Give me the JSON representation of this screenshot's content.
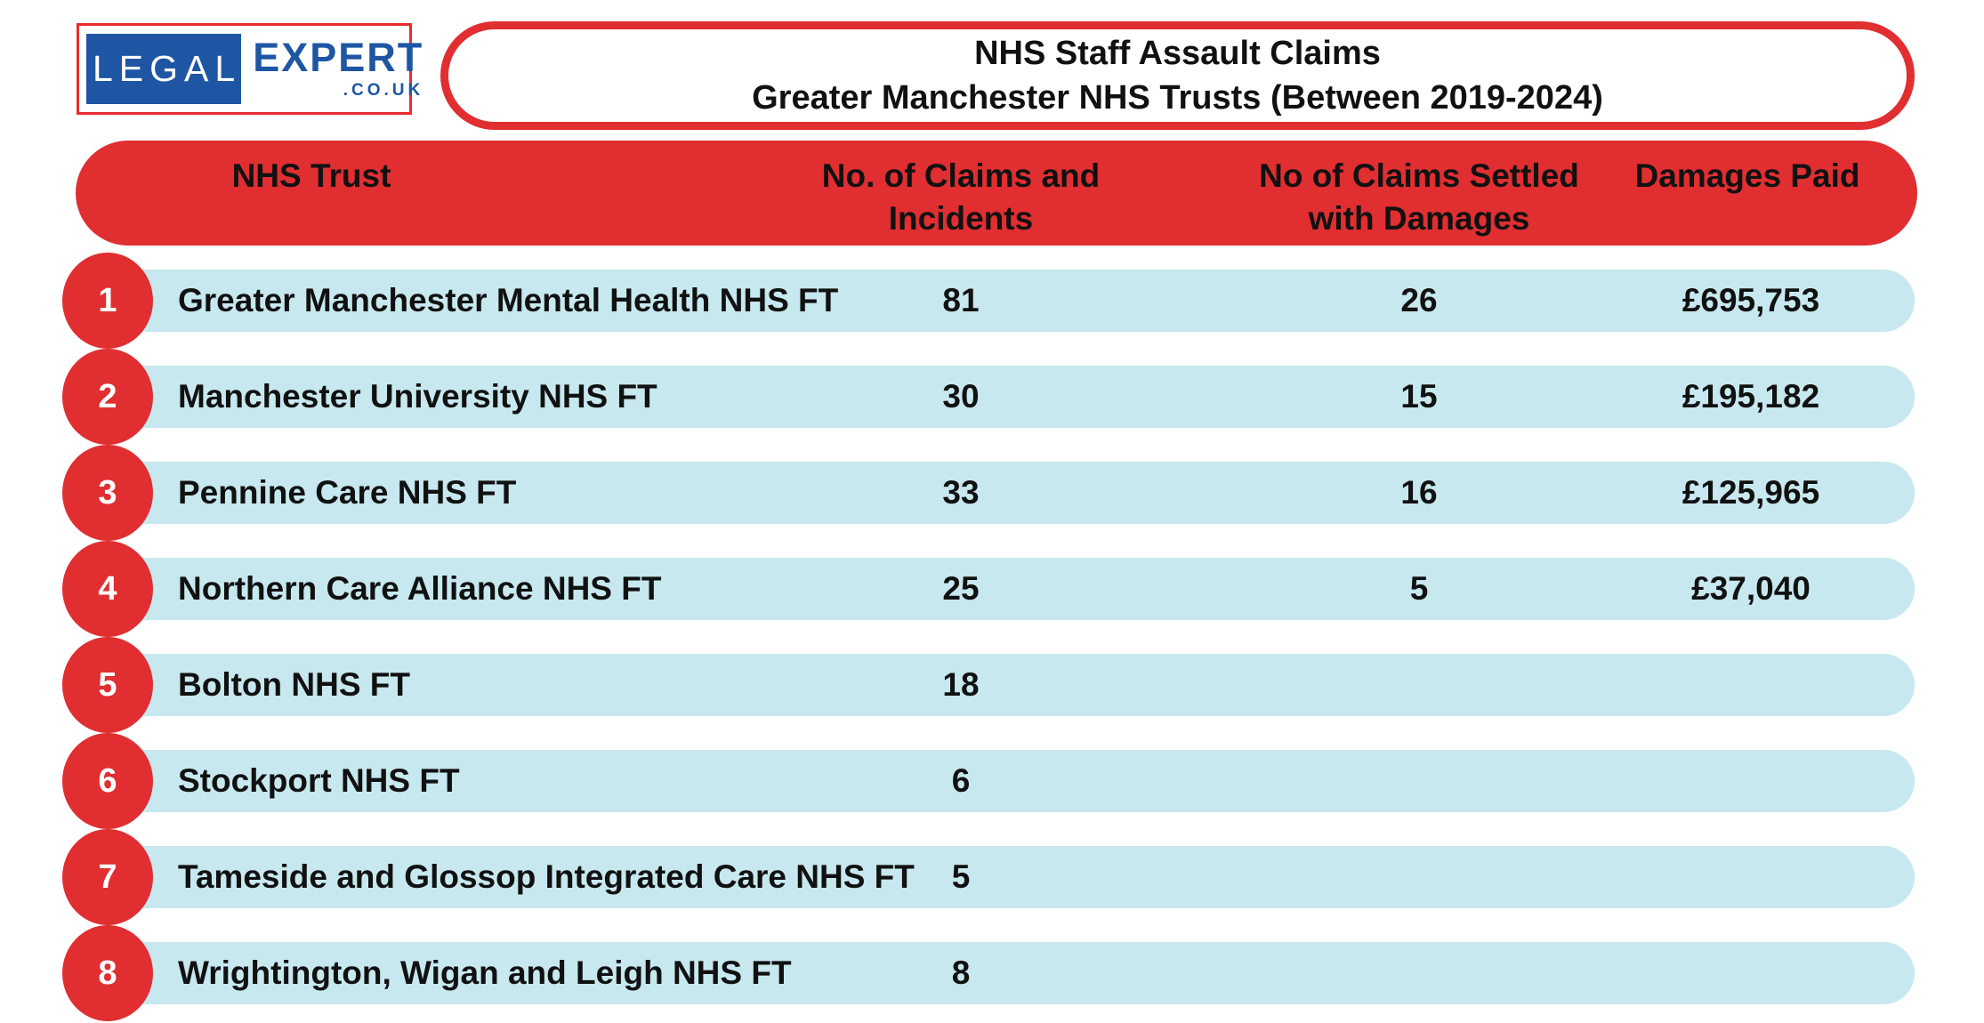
{
  "logo": {
    "brand_primary": "LEGAL",
    "brand_secondary": "EXPERT",
    "brand_tld": ".CO.UK"
  },
  "title": {
    "line1": "NHS Staff Assault Claims",
    "line2": "Greater Manchester NHS Trusts (Between 2019-2024)"
  },
  "colors": {
    "red": "#e02e31",
    "logo_red": "#e82c2e",
    "light_blue": "#c7e8ef",
    "logo_blue": "#1e56a4",
    "text": "#111111",
    "white": "#ffffff"
  },
  "table": {
    "columns": [
      {
        "line1": "NHS Trust",
        "line2": ""
      },
      {
        "line1": "No. of Claims and",
        "line2": "Incidents"
      },
      {
        "line1": "No of Claims Settled",
        "line2": "with Damages"
      },
      {
        "line1": "Damages Paid",
        "line2": ""
      }
    ],
    "rows": [
      {
        "rank": "1",
        "trust": "Greater Manchester Mental Health NHS FT",
        "claims": "81",
        "settled": "26",
        "damages": "£695,753"
      },
      {
        "rank": "2",
        "trust": "Manchester University NHS FT",
        "claims": "30",
        "settled": "15",
        "damages": "£195,182"
      },
      {
        "rank": "3",
        "trust": "Pennine Care NHS FT",
        "claims": "33",
        "settled": "16",
        "damages": "£125,965"
      },
      {
        "rank": "4",
        "trust": "Northern Care Alliance NHS FT",
        "claims": "25",
        "settled": "5",
        "damages": "£37,040"
      },
      {
        "rank": "5",
        "trust": "Bolton NHS FT",
        "claims": "18",
        "settled": "",
        "damages": ""
      },
      {
        "rank": "6",
        "trust": "Stockport NHS FT",
        "claims": "6",
        "settled": "",
        "damages": ""
      },
      {
        "rank": "7",
        "trust": "Tameside and Glossop Integrated Care NHS FT",
        "claims": "5",
        "settled": "",
        "damages": ""
      },
      {
        "rank": "8",
        "trust": "Wrightington, Wigan and Leigh NHS FT",
        "claims": "8",
        "settled": "",
        "damages": ""
      }
    ]
  },
  "chart_data": {
    "type": "table",
    "title": "NHS Staff Assault Claims",
    "subtitle": "Greater Manchester NHS Trusts (Between 2019-2024)",
    "columns": [
      "NHS Trust",
      "No. of Claims and Incidents",
      "No of Claims Settled with Damages",
      "Damages Paid"
    ],
    "rows": [
      [
        "Greater Manchester Mental Health NHS FT",
        81,
        26,
        "£695,753"
      ],
      [
        "Manchester University NHS FT",
        30,
        15,
        "£195,182"
      ],
      [
        "Pennine Care NHS FT",
        33,
        16,
        "£125,965"
      ],
      [
        "Northern Care Alliance NHS FT",
        25,
        5,
        "£37,040"
      ],
      [
        "Bolton NHS FT",
        18,
        null,
        null
      ],
      [
        "Stockport NHS FT",
        6,
        null,
        null
      ],
      [
        "Tameside and Glossop Integrated Care NHS FT",
        5,
        null,
        null
      ],
      [
        "Wrightington, Wigan and Leigh NHS FT",
        8,
        null,
        null
      ]
    ],
    "source_brand": "legalexpert.co.uk"
  }
}
